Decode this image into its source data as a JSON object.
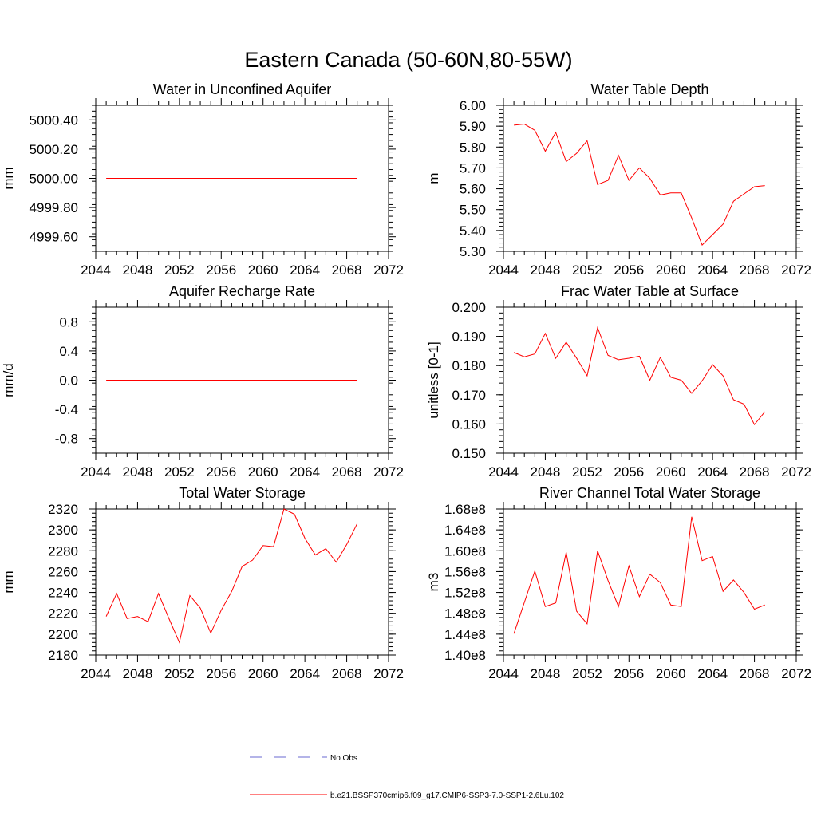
{
  "title": "Eastern Canada (50-60N,80-55W)",
  "legend": [
    {
      "label": "No Obs",
      "color": "#6a6ad0",
      "dashed": true
    },
    {
      "label": "b.e21.BSSP370cmip6.f09_g17.CMIP6-SSP3-7.0-SSP1-2.6Lu.102",
      "color": "#ff0000",
      "dashed": false
    }
  ],
  "chart_data": [
    {
      "type": "line",
      "title": "Water in Unconfined Aquifer",
      "ylabel": "mm",
      "xlim": [
        2044,
        2072
      ],
      "xticks": [
        2044,
        2048,
        2052,
        2056,
        2060,
        2064,
        2068,
        2072
      ],
      "xtick_labels": [
        "2044",
        "2048",
        "2052",
        "2056",
        "2060",
        "2064",
        "2068",
        "2072"
      ],
      "ylim": [
        4999.5,
        5000.5
      ],
      "yticks": [
        4999.6,
        4999.8,
        5000.0,
        5000.2,
        5000.4
      ],
      "ytick_labels": [
        "4999.60",
        "4999.80",
        "5000.00",
        "5000.20",
        "5000.40"
      ],
      "yminor": 0.04,
      "x": [
        2045,
        2069
      ],
      "series": [
        {
          "color": "#ff0000",
          "values": [
            5000.0,
            5000.0
          ]
        }
      ]
    },
    {
      "type": "line",
      "title": "Water Table Depth",
      "ylabel": "m",
      "xlim": [
        2044,
        2072
      ],
      "xticks": [
        2044,
        2048,
        2052,
        2056,
        2060,
        2064,
        2068,
        2072
      ],
      "xtick_labels": [
        "2044",
        "2048",
        "2052",
        "2056",
        "2060",
        "2064",
        "2068",
        "2072"
      ],
      "ylim": [
        5.3,
        6.0
      ],
      "yticks": [
        5.3,
        5.4,
        5.5,
        5.6,
        5.7,
        5.8,
        5.9,
        6.0
      ],
      "ytick_labels": [
        "5.30",
        "5.40",
        "5.50",
        "5.60",
        "5.70",
        "5.80",
        "5.90",
        "6.00"
      ],
      "yminor": 0.02,
      "x": [
        2045,
        2046,
        2047,
        2048,
        2049,
        2050,
        2051,
        2052,
        2053,
        2054,
        2055,
        2056,
        2057,
        2058,
        2059,
        2060,
        2061,
        2062,
        2063,
        2064,
        2065,
        2066,
        2067,
        2068,
        2069
      ],
      "series": [
        {
          "color": "#ff0000",
          "values": [
            5.905,
            5.91,
            5.88,
            5.78,
            5.87,
            5.73,
            5.77,
            5.83,
            5.62,
            5.64,
            5.76,
            5.64,
            5.7,
            5.65,
            5.57,
            5.58,
            5.58,
            5.46,
            5.33,
            5.38,
            5.43,
            5.54,
            5.575,
            5.61,
            5.615
          ]
        }
      ]
    },
    {
      "type": "line",
      "title": "Aquifer Recharge Rate",
      "ylabel": "mm/d",
      "xlim": [
        2044,
        2072
      ],
      "xticks": [
        2044,
        2048,
        2052,
        2056,
        2060,
        2064,
        2068,
        2072
      ],
      "xtick_labels": [
        "2044",
        "2048",
        "2052",
        "2056",
        "2060",
        "2064",
        "2068",
        "2072"
      ],
      "ylim": [
        -1.0,
        1.0
      ],
      "yticks": [
        -0.8,
        -0.4,
        0.0,
        0.4,
        0.8
      ],
      "ytick_labels": [
        "-0.8",
        "-0.4",
        "0.0",
        "0.4",
        "0.8"
      ],
      "yminor": 0.08,
      "x": [
        2045,
        2069
      ],
      "series": [
        {
          "color": "#ff0000",
          "values": [
            0.0,
            0.0
          ]
        }
      ]
    },
    {
      "type": "line",
      "title": "Frac Water Table at Surface",
      "ylabel": "unitless [0-1]",
      "xlim": [
        2044,
        2072
      ],
      "xticks": [
        2044,
        2048,
        2052,
        2056,
        2060,
        2064,
        2068,
        2072
      ],
      "xtick_labels": [
        "2044",
        "2048",
        "2052",
        "2056",
        "2060",
        "2064",
        "2068",
        "2072"
      ],
      "ylim": [
        0.15,
        0.2
      ],
      "yticks": [
        0.15,
        0.16,
        0.17,
        0.18,
        0.19,
        0.2
      ],
      "ytick_labels": [
        "0.150",
        "0.160",
        "0.170",
        "0.180",
        "0.190",
        "0.200"
      ],
      "yminor": 0.002,
      "x": [
        2045,
        2046,
        2047,
        2048,
        2049,
        2050,
        2051,
        2052,
        2053,
        2054,
        2055,
        2056,
        2057,
        2058,
        2059,
        2060,
        2061,
        2062,
        2063,
        2064,
        2065,
        2066,
        2067,
        2068,
        2069
      ],
      "series": [
        {
          "color": "#ff0000",
          "values": [
            0.1845,
            0.183,
            0.184,
            0.191,
            0.1825,
            0.188,
            0.1825,
            0.1765,
            0.193,
            0.1835,
            0.182,
            0.1825,
            0.1832,
            0.175,
            0.1828,
            0.176,
            0.175,
            0.1705,
            0.1748,
            0.1803,
            0.1765,
            0.1683,
            0.1668,
            0.1598,
            0.1642
          ]
        }
      ]
    },
    {
      "type": "line",
      "title": "Total Water Storage",
      "ylabel": "mm",
      "xlim": [
        2044,
        2072
      ],
      "xticks": [
        2044,
        2048,
        2052,
        2056,
        2060,
        2064,
        2068,
        2072
      ],
      "xtick_labels": [
        "2044",
        "2048",
        "2052",
        "2056",
        "2060",
        "2064",
        "2068",
        "2072"
      ],
      "ylim": [
        2180,
        2320
      ],
      "yticks": [
        2180,
        2200,
        2220,
        2240,
        2260,
        2280,
        2300,
        2320
      ],
      "ytick_labels": [
        "2180",
        "2200",
        "2220",
        "2240",
        "2260",
        "2280",
        "2300",
        "2320"
      ],
      "yminor": 4,
      "x": [
        2045,
        2046,
        2047,
        2048,
        2049,
        2050,
        2051,
        2052,
        2053,
        2054,
        2055,
        2056,
        2057,
        2058,
        2059,
        2060,
        2061,
        2062,
        2063,
        2064,
        2065,
        2066,
        2067,
        2068,
        2069
      ],
      "series": [
        {
          "color": "#ff0000",
          "values": [
            2217,
            2239,
            2215,
            2217,
            2212,
            2239,
            2215,
            2192,
            2237,
            2225,
            2201,
            2223,
            2241,
            2265,
            2271,
            2285,
            2284,
            2320,
            2315,
            2292,
            2276,
            2282,
            2269,
            2286,
            2306
          ]
        }
      ]
    },
    {
      "type": "line",
      "title": "River Channel Total Water Storage",
      "ylabel": "m3",
      "xlim": [
        2044,
        2072
      ],
      "xticks": [
        2044,
        2048,
        2052,
        2056,
        2060,
        2064,
        2068,
        2072
      ],
      "xtick_labels": [
        "2044",
        "2048",
        "2052",
        "2056",
        "2060",
        "2064",
        "2068",
        "2072"
      ],
      "ylim": [
        140000000.0,
        168000000.0
      ],
      "yticks": [
        140000000.0,
        144000000.0,
        148000000.0,
        152000000.0,
        156000000.0,
        160000000.0,
        164000000.0,
        168000000.0
      ],
      "ytick_labels": [
        "1.40e8",
        "1.44e8",
        "1.48e8",
        "1.52e8",
        "1.56e8",
        "1.60e8",
        "1.64e8",
        "1.68e8"
      ],
      "yminor": 800000.0,
      "x": [
        2045,
        2046,
        2047,
        2048,
        2049,
        2050,
        2051,
        2052,
        2053,
        2054,
        2055,
        2056,
        2057,
        2058,
        2059,
        2060,
        2061,
        2062,
        2063,
        2064,
        2065,
        2066,
        2067,
        2068,
        2069
      ],
      "series": [
        {
          "color": "#ff0000",
          "values": [
            144100000.0,
            150100000.0,
            156100000.0,
            149300000.0,
            150000000.0,
            159700000.0,
            148400000.0,
            146000000.0,
            160000000.0,
            154300000.0,
            149300000.0,
            157100000.0,
            151200000.0,
            155500000.0,
            153900000.0,
            149600000.0,
            149300000.0,
            166500000.0,
            158100000.0,
            158900000.0,
            152200000.0,
            154400000.0,
            152000000.0,
            148800000.0,
            149600000.0
          ]
        }
      ]
    }
  ]
}
